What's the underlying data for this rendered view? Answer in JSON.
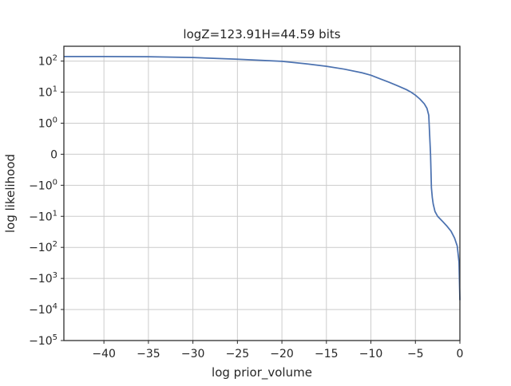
{
  "chart_data": {
    "type": "line",
    "title": "logZ=123.91H=44.59 bits",
    "xlabel": "log prior_volume",
    "ylabel": "log likelihood",
    "xlim": [
      -44.5,
      0
    ],
    "yscale": "symlog",
    "symlog_linthresh": 1,
    "ylim": [
      -100000,
      300
    ],
    "grid": true,
    "line_color": "#4c72b0",
    "x_ticks": [
      {
        "value": -40,
        "label": "−40"
      },
      {
        "value": -35,
        "label": "−35"
      },
      {
        "value": -30,
        "label": "−30"
      },
      {
        "value": -25,
        "label": "−25"
      },
      {
        "value": -20,
        "label": "−20"
      },
      {
        "value": -15,
        "label": "−15"
      },
      {
        "value": -10,
        "label": "−10"
      },
      {
        "value": -5,
        "label": "−5"
      },
      {
        "value": 0,
        "label": "0"
      }
    ],
    "y_ticks": [
      {
        "value": 100,
        "base": "10",
        "exp": "2",
        "sign": ""
      },
      {
        "value": 10,
        "base": "10",
        "exp": "1",
        "sign": ""
      },
      {
        "value": 1,
        "base": "10",
        "exp": "0",
        "sign": ""
      },
      {
        "value": 0,
        "base": "0",
        "exp": "",
        "sign": ""
      },
      {
        "value": -1,
        "base": "10",
        "exp": "0",
        "sign": "−"
      },
      {
        "value": -10,
        "base": "10",
        "exp": "1",
        "sign": "−"
      },
      {
        "value": -100,
        "base": "10",
        "exp": "2",
        "sign": "−"
      },
      {
        "value": -1000,
        "base": "10",
        "exp": "3",
        "sign": "−"
      },
      {
        "value": -10000,
        "base": "10",
        "exp": "4",
        "sign": "−"
      },
      {
        "value": -100000,
        "base": "10",
        "exp": "5",
        "sign": "−"
      }
    ],
    "series": [
      {
        "x": [
          -44.5,
          -40,
          -35,
          -30,
          -25,
          -20,
          -17,
          -15,
          -13,
          -11,
          -10,
          -9,
          -8,
          -7,
          -6,
          -5.5,
          -5,
          -4.5,
          -4,
          -3.7,
          -3.5,
          -3.3,
          -3.2,
          -3.1,
          -3.0,
          -2.8,
          -2.5,
          -2.0,
          -1.5,
          -1.0,
          -0.6,
          -0.3,
          -0.1,
          0
        ],
        "y": [
          140,
          140,
          138,
          130,
          115,
          98,
          80,
          68,
          55,
          42,
          35,
          27,
          21,
          16,
          12,
          10,
          8,
          6,
          4.2,
          3,
          1.8,
          0,
          -1.2,
          -2.5,
          -4,
          -7,
          -10,
          -14,
          -20,
          -30,
          -50,
          -90,
          -300,
          -5000
        ]
      }
    ]
  }
}
